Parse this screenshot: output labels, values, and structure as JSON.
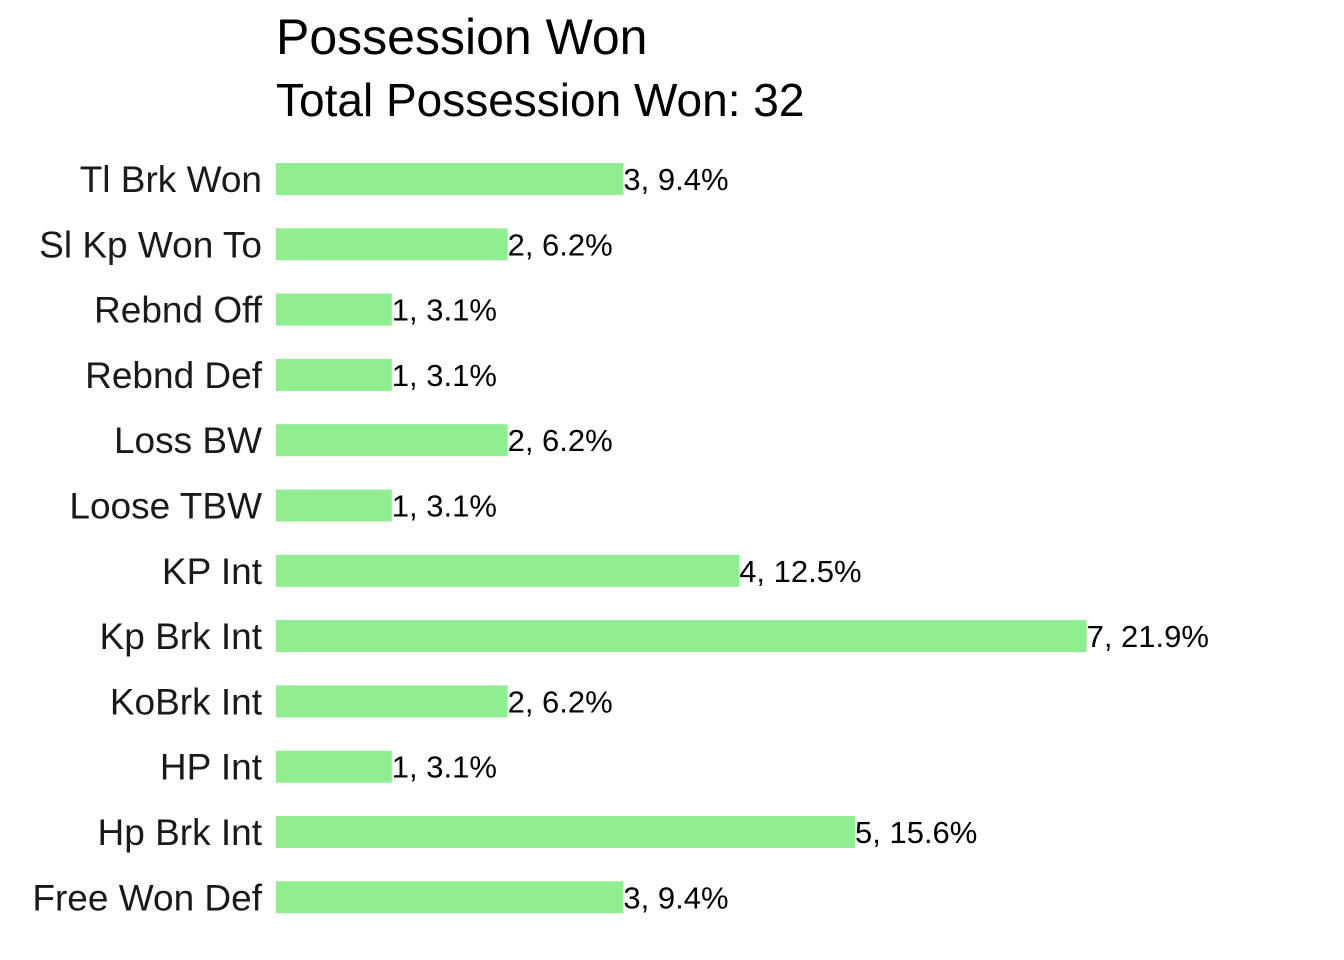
{
  "chart_data": {
    "type": "bar",
    "orientation": "horizontal",
    "title": "Possession Won",
    "subtitle": "Total Possession Won: 32",
    "xlabel": "",
    "ylabel": "",
    "categories": [
      "Tl Brk Won",
      "Sl Kp Won To",
      "Rebnd Off",
      "Rebnd Def",
      "Loss BW",
      "Loose TBW",
      "KP Int",
      "Kp Brk Int",
      "KoBrk Int",
      "HP Int",
      "Hp Brk Int",
      "Free Won Def"
    ],
    "values": [
      3,
      2,
      1,
      1,
      2,
      1,
      4,
      7,
      2,
      1,
      5,
      3
    ],
    "data_labels": [
      "3, 9.4%",
      "2, 6.2%",
      "1, 3.1%",
      "1, 3.1%",
      "2, 6.2%",
      "1, 3.1%",
      "4, 12.5%",
      "7, 21.9%",
      "2, 6.2%",
      "1, 3.1%",
      "5, 15.6%",
      "3, 9.4%"
    ],
    "xlim": [
      0,
      7
    ],
    "grid": false,
    "legend": "none",
    "bar_color": "#90EE90"
  }
}
